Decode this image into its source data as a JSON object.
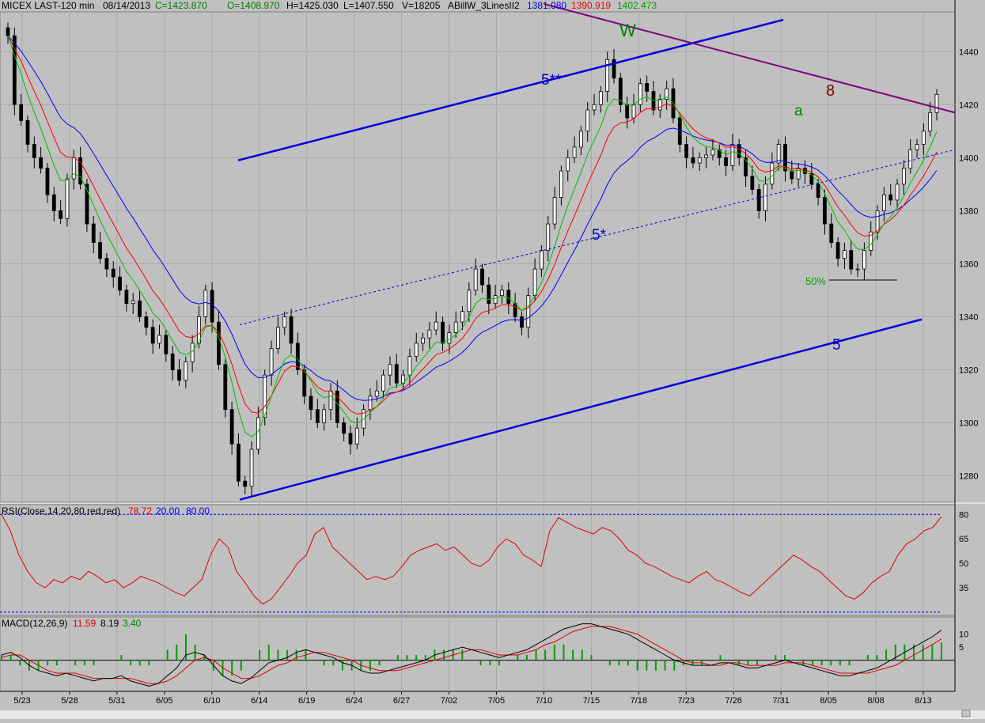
{
  "header": {
    "symbol": "MICEX LAST-120 min",
    "date": "08/14/2013",
    "close": "C=1423.870",
    "open": "O=1408.970",
    "high": "H=1425.030",
    "low": "L=1407.550",
    "volume": "V=18205",
    "indicator_name": "ABillW_3LinesII2",
    "line_blue": "1381.080",
    "line_red": "1390.919",
    "line_green": "1402.473"
  },
  "colors": {
    "background": "#c0c0c0",
    "bull_candle": "#ffffff",
    "bear_candle": "#000000",
    "ma_blue": "#0000ff",
    "ma_red": "#ff0000",
    "ma_green": "#00c000",
    "channel": "#0000e0",
    "resistance": "#800080",
    "rsi": "#e00000",
    "macd": "#000000",
    "signal": "#e00000",
    "histogram": "#00a000"
  },
  "chart_data": [
    {
      "type": "candlestick",
      "ylim": [
        1270,
        1455
      ],
      "yticks": [
        "1440",
        "1420",
        "1400",
        "1380",
        "1360",
        "1340",
        "1320",
        "1300",
        "1280"
      ],
      "xticks": [
        "5/23",
        "5/28",
        "5/31",
        "6/05",
        "6/10",
        "6/14",
        "6/19",
        "6/24",
        "6/27",
        "7/02",
        "7/05",
        "7/10",
        "7/15",
        "7/18",
        "7/23",
        "7/26",
        "7/31",
        "8/05",
        "8/08",
        "8/13"
      ],
      "closes": [
        1446,
        1420,
        1414,
        1405,
        1400,
        1396,
        1386,
        1380,
        1377,
        1392,
        1400,
        1390,
        1375,
        1368,
        1362,
        1358,
        1355,
        1350,
        1345,
        1346,
        1340,
        1336,
        1330,
        1333,
        1326,
        1320,
        1316,
        1323,
        1330,
        1340,
        1350,
        1338,
        1322,
        1305,
        1292,
        1278,
        1276,
        1290,
        1302,
        1318,
        1328,
        1336,
        1340,
        1330,
        1320,
        1310,
        1305,
        1300,
        1305,
        1312,
        1300,
        1296,
        1292,
        1298,
        1305,
        1310,
        1312,
        1318,
        1322,
        1315,
        1318,
        1325,
        1330,
        1332,
        1335,
        1338,
        1330,
        1334,
        1338,
        1342,
        1350,
        1358,
        1352,
        1345,
        1348,
        1350,
        1345,
        1340,
        1336,
        1348,
        1358,
        1365,
        1375,
        1385,
        1395,
        1400,
        1404,
        1410,
        1418,
        1420,
        1425,
        1437,
        1430,
        1420,
        1415,
        1420,
        1428,
        1425,
        1418,
        1422,
        1426,
        1415,
        1405,
        1400,
        1398,
        1400,
        1401,
        1403,
        1400,
        1397,
        1405,
        1400,
        1393,
        1388,
        1380,
        1390,
        1398,
        1405,
        1395,
        1392,
        1396,
        1394,
        1390,
        1385,
        1375,
        1368,
        1362,
        1365,
        1358,
        1358,
        1365,
        1372,
        1380,
        1386,
        1384,
        1390,
        1396,
        1403,
        1405,
        1410,
        1417,
        1423.87
      ],
      "series": [
        {
          "name": "ABillW_3LinesII2 blue",
          "last": 1381.08
        },
        {
          "name": "ABillW_3LinesII2 red",
          "last": 1390.919
        },
        {
          "name": "ABillW_3LinesII2 green",
          "last": 1402.473
        }
      ],
      "annotations": [
        "W",
        "5**",
        "8",
        "a",
        "5*",
        "50%",
        "5"
      ],
      "lines": [
        {
          "name": "channel-upper",
          "from": [
            "6/02",
            1399
          ],
          "to": [
            "7/27",
            1452
          ]
        },
        {
          "name": "channel-lower",
          "from": [
            "6/12",
            1271
          ],
          "to": [
            "8/12",
            1339
          ]
        },
        {
          "name": "channel-mid-dotted",
          "from": [
            "6/12",
            1337
          ],
          "to": [
            "8/14",
            1403
          ]
        },
        {
          "name": "resistance",
          "from": [
            "7/10",
            1458
          ],
          "to": [
            "8/14",
            1417
          ]
        }
      ]
    },
    {
      "type": "line",
      "title": "RSI(Close,14,20,80,red,red)",
      "value": "78.72",
      "lower": "20.00",
      "upper": "80.00",
      "ylim": [
        18,
        85
      ],
      "yticks": [
        "80",
        "65",
        "50",
        "35"
      ],
      "values": [
        80,
        70,
        55,
        45,
        38,
        35,
        40,
        38,
        42,
        40,
        45,
        42,
        38,
        40,
        35,
        38,
        42,
        40,
        38,
        35,
        32,
        30,
        35,
        40,
        55,
        65,
        60,
        45,
        38,
        30,
        25,
        28,
        35,
        42,
        50,
        55,
        68,
        72,
        60,
        55,
        50,
        45,
        40,
        42,
        40,
        42,
        48,
        55,
        58,
        60,
        62,
        58,
        60,
        55,
        50,
        48,
        52,
        60,
        65,
        62,
        55,
        52,
        48,
        70,
        78,
        75,
        72,
        70,
        68,
        72,
        70,
        65,
        58,
        55,
        50,
        48,
        45,
        42,
        40,
        38,
        42,
        45,
        40,
        38,
        35,
        32,
        30,
        35,
        40,
        45,
        50,
        55,
        52,
        48,
        45,
        40,
        35,
        30,
        28,
        32,
        38,
        42,
        45,
        55,
        62,
        65,
        70,
        72,
        78.72
      ]
    },
    {
      "type": "line",
      "title": "MACD(12,26,9)",
      "macd": "11.59",
      "signal": "8.19",
      "histogram": "3.40",
      "ylim": [
        -12,
        16
      ],
      "yticks": [
        "10",
        "5"
      ],
      "series": [
        {
          "name": "MACD",
          "values": [
            2,
            3,
            1,
            -2,
            -4,
            -5,
            -6,
            -5,
            -6,
            -7,
            -8,
            -7,
            -7,
            -6,
            -8,
            -9,
            -10,
            -9,
            -6,
            -3,
            2,
            3,
            2,
            -2,
            -6,
            -8,
            -9,
            -7,
            -4,
            -1,
            0,
            1,
            3,
            4,
            3,
            2,
            1,
            -1,
            -2,
            -4,
            -5,
            -5,
            -4,
            -3,
            -2,
            -1,
            0,
            2,
            3,
            4,
            5,
            4,
            3,
            2,
            1,
            2,
            3,
            4,
            6,
            8,
            10,
            12,
            13,
            14,
            14,
            13,
            12,
            11,
            10,
            8,
            6,
            4,
            2,
            0,
            -1,
            -2,
            -2,
            -2,
            -1,
            -1,
            -2,
            -3,
            -3,
            -2,
            -1,
            0,
            -1,
            -2,
            -3,
            -4,
            -5,
            -6,
            -6,
            -5,
            -4,
            -3,
            -1,
            1,
            3,
            5,
            7,
            9,
            11.59
          ]
        },
        {
          "name": "Signal",
          "values": [
            1,
            2,
            2,
            0,
            -2,
            -4,
            -5,
            -5,
            -5,
            -6,
            -7,
            -7,
            -7,
            -7,
            -7,
            -8,
            -9,
            -9,
            -8,
            -6,
            -3,
            0,
            1,
            0,
            -3,
            -5,
            -7,
            -7,
            -6,
            -4,
            -2,
            -1,
            1,
            2,
            3,
            3,
            2,
            1,
            0,
            -2,
            -3,
            -4,
            -4,
            -4,
            -3,
            -2,
            -1,
            0,
            1,
            2,
            3,
            4,
            4,
            3,
            2,
            2,
            2,
            3,
            4,
            6,
            7,
            9,
            11,
            12,
            13,
            13,
            13,
            12,
            11,
            10,
            8,
            6,
            4,
            2,
            0,
            -1,
            -1,
            -2,
            -2,
            -1,
            -1,
            -2,
            -2,
            -2,
            -2,
            -1,
            -1,
            -1,
            -2,
            -3,
            -4,
            -5,
            -5,
            -5,
            -5,
            -4,
            -3,
            -2,
            0,
            2,
            4,
            6,
            8.19
          ]
        }
      ]
    }
  ]
}
